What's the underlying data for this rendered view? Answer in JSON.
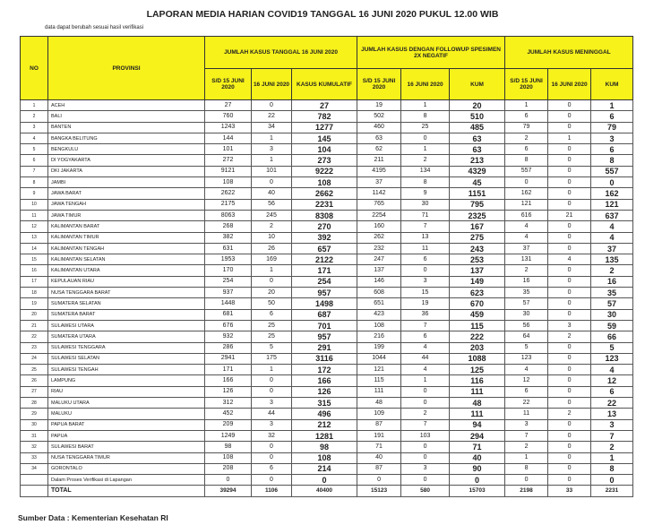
{
  "title": "LAPORAN MEDIA HARIAN COVID19 TANGGAL 16 JUNI 2020 PUKUL 12.00 WIB",
  "note": "data dapat berubah sesuai hasil verifikasi",
  "header": {
    "no": "NO",
    "provinsi": "PROVINSI",
    "group1": "JUMLAH KASUS        TANGGAL 16 JUNI 2020",
    "group2": "JUMLAH KASUS DENGAN FOLLOWUP SPESIMEN 2X NEGATIF",
    "group3": "JUMLAH KASUS MENINGGAL",
    "sub": [
      "S/D 15 JUNI 2020",
      "16 JUNI 2020",
      "KASUS KUMULATIF",
      "S/D 15 JUNI 2020",
      "16 JUNI 2020",
      "KUM",
      "S/D 15 JUNI 2020",
      "16 JUNI 2020",
      "KUM"
    ]
  },
  "header_color": "#f7f21a",
  "rows": [
    [
      "1",
      "ACEH",
      "27",
      "0",
      "27",
      "19",
      "1",
      "20",
      "1",
      "0",
      "1"
    ],
    [
      "2",
      "BALI",
      "760",
      "22",
      "782",
      "502",
      "8",
      "510",
      "6",
      "0",
      "6"
    ],
    [
      "3",
      "BANTEN",
      "1243",
      "34",
      "1277",
      "460",
      "25",
      "485",
      "79",
      "0",
      "79"
    ],
    [
      "4",
      "BANGKA BELITUNG",
      "144",
      "1",
      "145",
      "63",
      "0",
      "63",
      "2",
      "1",
      "3"
    ],
    [
      "5",
      "BENGKULU",
      "101",
      "3",
      "104",
      "62",
      "1",
      "63",
      "6",
      "0",
      "6"
    ],
    [
      "6",
      "DI YOGYAKARTA",
      "272",
      "1",
      "273",
      "211",
      "2",
      "213",
      "8",
      "0",
      "8"
    ],
    [
      "7",
      "DKI JAKARTA",
      "9121",
      "101",
      "9222",
      "4195",
      "134",
      "4329",
      "557",
      "0",
      "557"
    ],
    [
      "8",
      "JAMBI",
      "108",
      "0",
      "108",
      "37",
      "8",
      "45",
      "0",
      "0",
      "0"
    ],
    [
      "9",
      "JAWA BARAT",
      "2622",
      "40",
      "2662",
      "1142",
      "9",
      "1151",
      "162",
      "0",
      "162"
    ],
    [
      "10",
      "JAWA TENGAH",
      "2175",
      "56",
      "2231",
      "765",
      "30",
      "795",
      "121",
      "0",
      "121"
    ],
    [
      "11",
      "JAWA TIMUR",
      "8063",
      "245",
      "8308",
      "2254",
      "71",
      "2325",
      "616",
      "21",
      "637"
    ],
    [
      "12",
      "KALIMANTAN BARAT",
      "268",
      "2",
      "270",
      "160",
      "7",
      "167",
      "4",
      "0",
      "4"
    ],
    [
      "13",
      "KALIMANTAN TIMUR",
      "382",
      "10",
      "392",
      "262",
      "13",
      "275",
      "4",
      "0",
      "4"
    ],
    [
      "14",
      "KALIMANTAN TENGAH",
      "631",
      "26",
      "657",
      "232",
      "11",
      "243",
      "37",
      "0",
      "37"
    ],
    [
      "15",
      "KALIMANTAN SELATAN",
      "1953",
      "169",
      "2122",
      "247",
      "6",
      "253",
      "131",
      "4",
      "135"
    ],
    [
      "16",
      "KALIMANTAN UTARA",
      "170",
      "1",
      "171",
      "137",
      "0",
      "137",
      "2",
      "0",
      "2"
    ],
    [
      "17",
      "KEPULAUAN RIAU",
      "254",
      "0",
      "254",
      "146",
      "3",
      "149",
      "16",
      "0",
      "16"
    ],
    [
      "18",
      "NUSA TENGGARA BARAT",
      "937",
      "20",
      "957",
      "608",
      "15",
      "623",
      "35",
      "0",
      "35"
    ],
    [
      "19",
      "SUMATERA SELATAN",
      "1448",
      "50",
      "1498",
      "651",
      "19",
      "670",
      "57",
      "0",
      "57"
    ],
    [
      "20",
      "SUMATERA BARAT",
      "681",
      "6",
      "687",
      "423",
      "36",
      "459",
      "30",
      "0",
      "30"
    ],
    [
      "21",
      "SULAWESI UTARA",
      "676",
      "25",
      "701",
      "108",
      "7",
      "115",
      "56",
      "3",
      "59"
    ],
    [
      "22",
      "SUMATERA UTARA",
      "932",
      "25",
      "957",
      "216",
      "6",
      "222",
      "64",
      "2",
      "66"
    ],
    [
      "23",
      "SULAWESI TENGGARA",
      "286",
      "5",
      "291",
      "199",
      "4",
      "203",
      "5",
      "0",
      "5"
    ],
    [
      "24",
      "SULAWESI SELATAN",
      "2941",
      "175",
      "3116",
      "1044",
      "44",
      "1088",
      "123",
      "0",
      "123"
    ],
    [
      "25",
      "SULAWESI TENGAH",
      "171",
      "1",
      "172",
      "121",
      "4",
      "125",
      "4",
      "0",
      "4"
    ],
    [
      "26",
      "LAMPUNG",
      "166",
      "0",
      "166",
      "115",
      "1",
      "116",
      "12",
      "0",
      "12"
    ],
    [
      "27",
      "RIAU",
      "126",
      "0",
      "126",
      "111",
      "0",
      "111",
      "6",
      "0",
      "6"
    ],
    [
      "28",
      "MALUKU UTARA",
      "312",
      "3",
      "315",
      "48",
      "0",
      "48",
      "22",
      "0",
      "22"
    ],
    [
      "29",
      "MALUKU",
      "452",
      "44",
      "496",
      "109",
      "2",
      "111",
      "11",
      "2",
      "13"
    ],
    [
      "30",
      "PAPUA BARAT",
      "209",
      "3",
      "212",
      "87",
      "7",
      "94",
      "3",
      "0",
      "3"
    ],
    [
      "31",
      "PAPUA",
      "1249",
      "32",
      "1281",
      "191",
      "103",
      "294",
      "7",
      "0",
      "7"
    ],
    [
      "32",
      "SULAWESI BARAT",
      "98",
      "0",
      "98",
      "71",
      "0",
      "71",
      "2",
      "0",
      "2"
    ],
    [
      "33",
      "NUSA TENGGARA TIMUR",
      "108",
      "0",
      "108",
      "40",
      "0",
      "40",
      "1",
      "0",
      "1"
    ],
    [
      "34",
      "GORONTALO",
      "208",
      "6",
      "214",
      "87",
      "3",
      "90",
      "8",
      "0",
      "8"
    ],
    [
      "",
      "Dalam Proses Verifikasi di Lapangan",
      "0",
      "0",
      "0",
      "0",
      "0",
      "0",
      "0",
      "0",
      "0"
    ]
  ],
  "total": [
    "",
    "TOTAL",
    "39294",
    "1106",
    "40400",
    "15123",
    "580",
    "15703",
    "2198",
    "33",
    "2231"
  ],
  "source": "Sumber Data : Kementerian Kesehatan RI"
}
